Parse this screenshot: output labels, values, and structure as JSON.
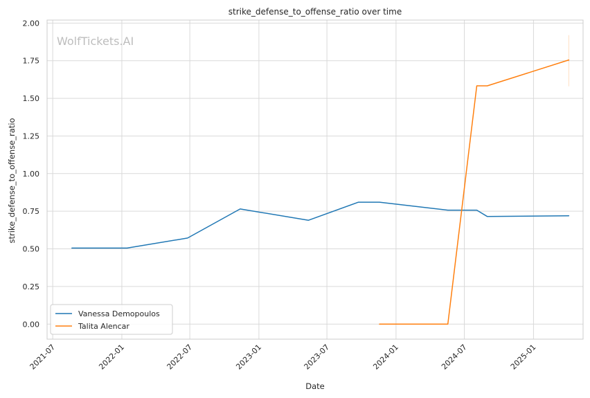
{
  "chart_data": {
    "type": "line",
    "title": "strike_defense_to_offense_ratio over time",
    "xlabel": "Date",
    "ylabel": "strike_defense_to_offense_ratio",
    "watermark": "WolfTickets.AI",
    "x_ticks": [
      "2021-07",
      "2022-01",
      "2022-07",
      "2023-01",
      "2023-07",
      "2024-01",
      "2024-07",
      "2025-01"
    ],
    "y_ticks": [
      "0.00",
      "0.25",
      "0.50",
      "0.75",
      "1.00",
      "1.25",
      "1.50",
      "1.75",
      "2.00"
    ],
    "xlim": [
      "2021-06-16",
      "2025-05-13"
    ],
    "ylim": [
      -0.1,
      2.02
    ],
    "grid": true,
    "legend_position": "lower-left",
    "series": [
      {
        "name": "Vanessa Demopoulos",
        "color": "#1f77b4",
        "points": [
          {
            "x": "2021-08-21",
            "y": 0.505
          },
          {
            "x": "2022-01-15",
            "y": 0.505
          },
          {
            "x": "2022-06-25",
            "y": 0.572
          },
          {
            "x": "2022-11-12",
            "y": 0.765
          },
          {
            "x": "2023-05-13",
            "y": 0.69
          },
          {
            "x": "2023-09-23",
            "y": 0.81
          },
          {
            "x": "2023-11-18",
            "y": 0.81
          },
          {
            "x": "2024-05-18",
            "y": 0.757
          },
          {
            "x": "2024-08-03",
            "y": 0.757
          },
          {
            "x": "2024-08-31",
            "y": 0.715
          },
          {
            "x": "2025-04-05",
            "y": 0.72
          }
        ]
      },
      {
        "name": "Talita Alencar",
        "color": "#ff7f0e",
        "points": [
          {
            "x": "2023-11-18",
            "y": 0.0
          },
          {
            "x": "2024-05-18",
            "y": 0.0
          },
          {
            "x": "2024-08-03",
            "y": 1.583
          },
          {
            "x": "2024-08-31",
            "y": 1.583
          },
          {
            "x": "2025-04-05",
            "y": 1.755
          }
        ],
        "error_band": {
          "x": "2025-04-05",
          "low": 1.58,
          "high": 1.92
        }
      }
    ]
  }
}
